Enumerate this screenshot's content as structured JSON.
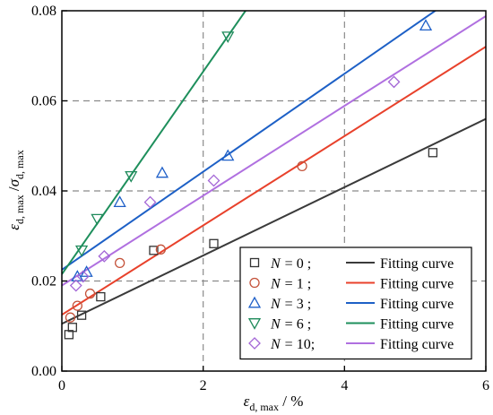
{
  "chart_data": {
    "type": "scatter",
    "xlabel": {
      "main": "ε",
      "sub": "d, max",
      "unit": " / %"
    },
    "ylabel": {
      "main": "ε",
      "sub1": "d, max",
      "sep": " /",
      "main2": "σ",
      "sub2": "d, max"
    },
    "xlim": [
      0,
      6
    ],
    "ylim": [
      0,
      0.08
    ],
    "xticks": [
      0,
      2,
      4,
      6
    ],
    "yticks": [
      0.0,
      0.02,
      0.04,
      0.06,
      0.08
    ],
    "xtick_labels": [
      "0",
      "2",
      "4",
      "6"
    ],
    "ytick_labels": [
      "0.00",
      "0.02",
      "0.04",
      "0.06",
      "0.08"
    ],
    "grid": "dashed at 2, 4 on x and 0.02, 0.04, 0.06 on y",
    "legend_position": "bottom-right",
    "series": [
      {
        "name": "N = 0 ;",
        "legend_symbol": "N",
        "legend_value": "= 0 ;",
        "marker": "square",
        "color": "#333333",
        "line_color": "#3a3a3a",
        "fit_label": "Fitting curve",
        "fit": {
          "intercept": 0.0105,
          "slope": 0.00758
        },
        "points": [
          [
            0.1,
            0.0081
          ],
          [
            0.15,
            0.0097
          ],
          [
            0.28,
            0.0124
          ],
          [
            0.55,
            0.0165
          ],
          [
            1.3,
            0.0268
          ],
          [
            2.15,
            0.0283
          ],
          [
            5.25,
            0.0485
          ]
        ]
      },
      {
        "name": "N = 1 ;",
        "legend_symbol": "N",
        "legend_value": "= 1 ;",
        "marker": "circle",
        "color": "#c4523a",
        "line_color": "#e8412b",
        "fit_label": "Fitting curve",
        "fit": {
          "intercept": 0.0125,
          "slope": 0.00992
        },
        "points": [
          [
            0.12,
            0.0119
          ],
          [
            0.22,
            0.0145
          ],
          [
            0.4,
            0.0172
          ],
          [
            0.82,
            0.024
          ],
          [
            1.4,
            0.027
          ],
          [
            3.4,
            0.0455
          ]
        ]
      },
      {
        "name": "N = 3 ;",
        "legend_symbol": "N",
        "legend_value": "= 3 ;",
        "marker": "triangle-up",
        "color": "#1e5fc8",
        "line_color": "#1d60c6",
        "fit_label": "Fitting curve",
        "fit": {
          "intercept": 0.0225,
          "slope": 0.01088
        },
        "points": [
          [
            0.22,
            0.021
          ],
          [
            0.35,
            0.022
          ],
          [
            0.82,
            0.0375
          ],
          [
            1.42,
            0.044
          ],
          [
            2.35,
            0.0478
          ],
          [
            5.15,
            0.0767
          ]
        ]
      },
      {
        "name": "N = 6 ;",
        "legend_symbol": "N",
        "legend_value": "= 6 ;",
        "marker": "triangle-down",
        "color": "#1e8a5a",
        "line_color": "#1e8f5c",
        "fit_label": "Fitting curve",
        "fit": {
          "intercept": 0.0215,
          "slope": 0.0225
        },
        "points": [
          [
            0.28,
            0.0268
          ],
          [
            0.5,
            0.0338
          ],
          [
            0.98,
            0.0433
          ],
          [
            2.35,
            0.0743
          ]
        ]
      },
      {
        "name": "N = 10;",
        "legend_symbol": "N",
        "legend_value": "= 10;",
        "marker": "diamond",
        "color": "#a366d6",
        "line_color": "#b070e0",
        "fit_label": "Fitting curve",
        "fit": {
          "intercept": 0.019,
          "slope": 0.00997
        },
        "points": [
          [
            0.2,
            0.019
          ],
          [
            0.3,
            0.021
          ],
          [
            0.6,
            0.0255
          ],
          [
            1.25,
            0.0375
          ],
          [
            2.15,
            0.0423
          ],
          [
            4.7,
            0.0642
          ]
        ]
      }
    ]
  }
}
